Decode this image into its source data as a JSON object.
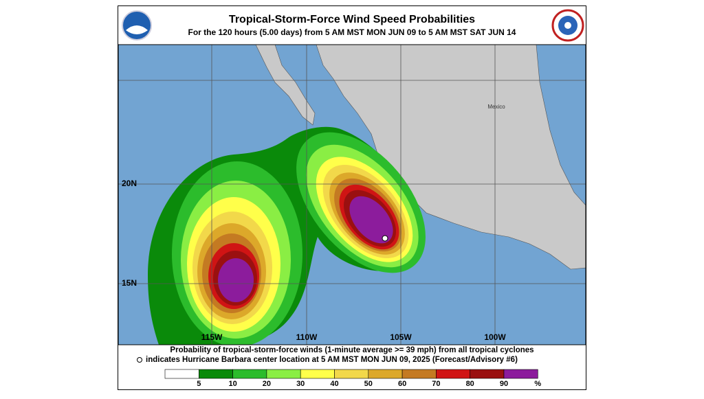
{
  "header": {
    "title": "Tropical-Storm-Force Wind Speed Probabilities",
    "subtitle": "For the 120 hours (5.00 days) from 5 AM MST MON JUN 09 to 5 AM MST SAT JUN 14"
  },
  "map": {
    "place_label": "Mexico",
    "lat_labels": [
      "20N",
      "15N"
    ],
    "lon_labels": [
      "115W",
      "110W",
      "105W",
      "100W"
    ]
  },
  "caption": {
    "line1": "Probability of tropical-storm-force winds (1-minute average >= 39 mph) from all tropical cyclones",
    "line2": "indicates Hurricane Barbara center location at 5 AM MST MON JUN 09, 2025 (Forecast/Advisory #6)"
  },
  "colorbar": {
    "labels": [
      "5",
      "10",
      "20",
      "30",
      "40",
      "50",
      "60",
      "70",
      "80",
      "90",
      "%"
    ],
    "colors": [
      "#ffffff",
      "#0a8a0a",
      "#2cbc2c",
      "#8aee44",
      "#ffff4a",
      "#f2d84a",
      "#dca82a",
      "#c47a22",
      "#d01414",
      "#9a1010",
      "#8c1c9c"
    ]
  }
}
